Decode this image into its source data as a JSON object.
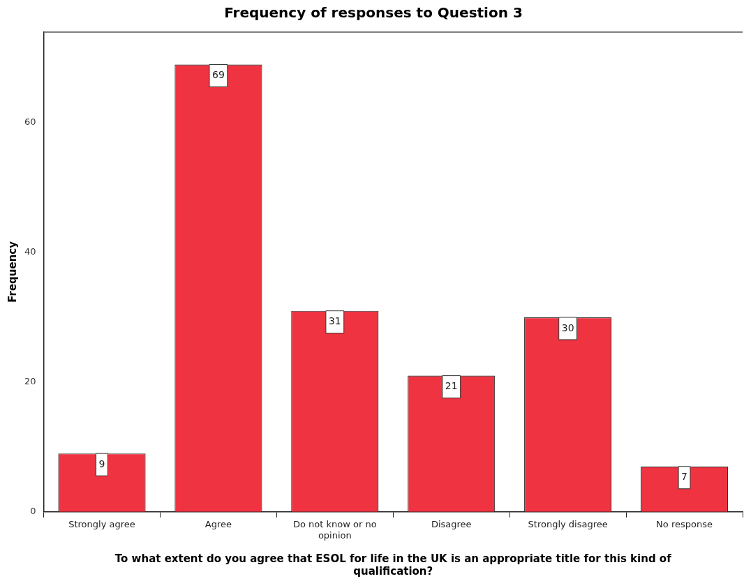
{
  "chart_data": {
    "type": "bar",
    "title": "Frequency of responses to Question 3",
    "xlabel": "To what extent do you agree that ESOL for life in the UK is an appropriate title for this kind of qualification?",
    "ylabel": "Frequency",
    "categories": [
      "Strongly agree",
      "Agree",
      "Do not know or no opinion",
      "Disagree",
      "Strongly disagree",
      "No response"
    ],
    "values": [
      9,
      69,
      31,
      21,
      30,
      7
    ],
    "color": "#ef3340",
    "ylim": [
      0,
      74
    ],
    "yticks": [
      0,
      20,
      40,
      60
    ],
    "data_labels": true,
    "grid": false,
    "legend": false
  }
}
